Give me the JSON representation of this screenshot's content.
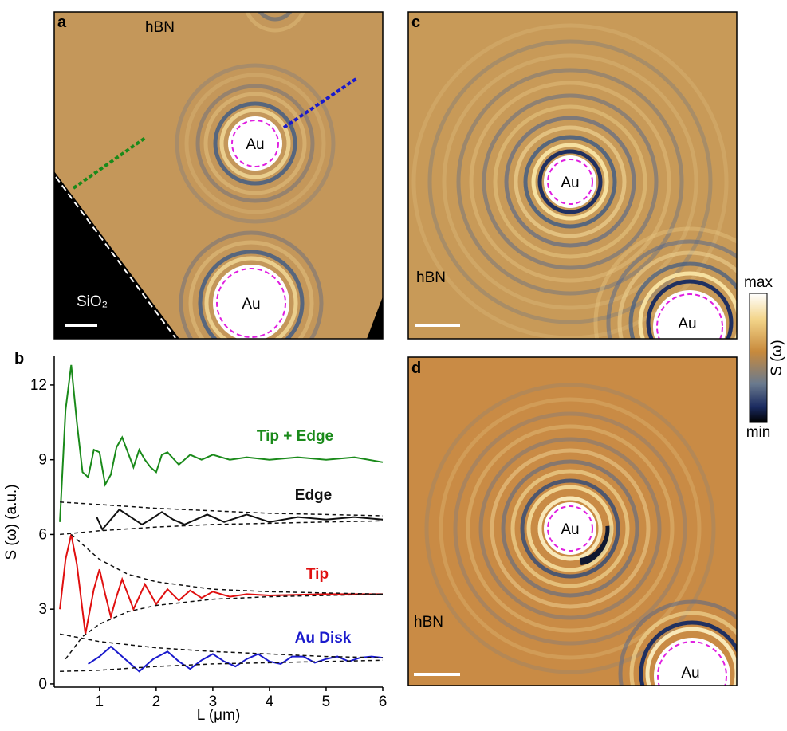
{
  "chart_data": {
    "type": "line",
    "panel_label": "b",
    "x_label": "L (μm)",
    "y_label": "S (ω) (a.u.)",
    "xlim": [
      0.2,
      6
    ],
    "ylim": [
      -0.13,
      13.15
    ],
    "xticks": [
      1,
      2,
      3,
      4,
      5,
      6
    ],
    "yticks": [
      0,
      3,
      6,
      9,
      12
    ],
    "series": [
      {
        "name": "Tip + Edge",
        "color": "#1a8a1a",
        "x": [
          0.3,
          0.4,
          0.5,
          0.6,
          0.7,
          0.8,
          0.9,
          1.0,
          1.1,
          1.2,
          1.3,
          1.4,
          1.5,
          1.6,
          1.7,
          1.8,
          1.9,
          2.0,
          2.1,
          2.2,
          2.4,
          2.6,
          2.8,
          3.0,
          3.3,
          3.6,
          4.0,
          4.5,
          5.0,
          5.5,
          6.0
        ],
        "values": [
          6.5,
          11.0,
          12.8,
          10.5,
          8.5,
          8.3,
          9.4,
          9.3,
          8.0,
          8.4,
          9.5,
          9.9,
          9.3,
          8.7,
          9.4,
          9.0,
          8.7,
          8.5,
          9.2,
          9.3,
          8.8,
          9.2,
          9.0,
          9.2,
          9.0,
          9.1,
          9.0,
          9.1,
          9.0,
          9.1,
          8.9
        ]
      },
      {
        "name": "Edge",
        "color": "#111111",
        "x": [
          0.95,
          1.05,
          1.2,
          1.35,
          1.55,
          1.75,
          1.9,
          2.1,
          2.3,
          2.5,
          2.7,
          2.9,
          3.2,
          3.6,
          4.0,
          4.5,
          5.0,
          5.5,
          6.0
        ],
        "values": [
          6.7,
          6.2,
          6.6,
          7.0,
          6.7,
          6.4,
          6.6,
          6.9,
          6.6,
          6.4,
          6.6,
          6.8,
          6.5,
          6.8,
          6.5,
          6.7,
          6.6,
          6.7,
          6.6
        ]
      },
      {
        "name": "Tip",
        "color": "#e01010",
        "x": [
          0.3,
          0.4,
          0.5,
          0.6,
          0.75,
          0.9,
          1.0,
          1.1,
          1.2,
          1.3,
          1.4,
          1.5,
          1.6,
          1.7,
          1.8,
          1.9,
          2.0,
          2.2,
          2.4,
          2.6,
          2.8,
          3.0,
          3.3,
          3.6,
          4.0,
          5.0,
          6.0
        ],
        "values": [
          3.0,
          5.0,
          6.0,
          4.8,
          2.0,
          3.8,
          4.6,
          3.6,
          2.7,
          3.5,
          4.2,
          3.6,
          3.0,
          3.5,
          4.0,
          3.6,
          3.2,
          3.8,
          3.35,
          3.75,
          3.45,
          3.7,
          3.5,
          3.6,
          3.55,
          3.6,
          3.6
        ]
      },
      {
        "name": "Au Disk",
        "color": "#1a1acc",
        "x": [
          0.8,
          1.0,
          1.2,
          1.45,
          1.7,
          1.95,
          2.2,
          2.4,
          2.6,
          2.8,
          3.0,
          3.2,
          3.4,
          3.6,
          3.8,
          4.0,
          4.2,
          4.4,
          4.6,
          4.8,
          5.0,
          5.2,
          5.4,
          5.6,
          5.8,
          6.0
        ],
        "values": [
          0.8,
          1.1,
          1.5,
          1.0,
          0.5,
          1.0,
          1.3,
          0.9,
          0.6,
          0.95,
          1.2,
          0.9,
          0.7,
          1.0,
          1.2,
          0.9,
          0.8,
          1.1,
          1.1,
          0.85,
          1.0,
          1.1,
          0.9,
          1.05,
          1.1,
          1.05
        ]
      },
      {
        "color": "#111111",
        "dashed": true,
        "x": [
          0.3,
          1,
          2,
          3,
          4,
          5,
          6
        ],
        "values": [
          7.3,
          7.2,
          7.05,
          6.95,
          6.85,
          6.8,
          6.75
        ]
      },
      {
        "color": "#111111",
        "dashed": true,
        "x": [
          0.3,
          1,
          2,
          3,
          4,
          5,
          6
        ],
        "values": [
          6.0,
          6.15,
          6.3,
          6.4,
          6.45,
          6.5,
          6.55
        ]
      },
      {
        "color": "#111111",
        "dashed": true,
        "x": [
          0.5,
          1,
          1.5,
          2,
          3,
          4,
          5,
          6
        ],
        "values": [
          6.0,
          5.0,
          4.4,
          4.1,
          3.8,
          3.7,
          3.65,
          3.6
        ]
      },
      {
        "color": "#111111",
        "dashed": true,
        "x": [
          0.4,
          0.7,
          1,
          1.5,
          2,
          3,
          4,
          5,
          6
        ],
        "values": [
          1.0,
          1.9,
          2.4,
          2.9,
          3.15,
          3.4,
          3.5,
          3.55,
          3.6
        ]
      },
      {
        "color": "#111111",
        "dashed": true,
        "x": [
          0.3,
          1,
          2,
          3,
          4,
          5,
          6
        ],
        "values": [
          2.0,
          1.7,
          1.45,
          1.3,
          1.2,
          1.1,
          1.05
        ]
      },
      {
        "color": "#111111",
        "dashed": true,
        "x": [
          0.3,
          1,
          2,
          3,
          4,
          5,
          6
        ],
        "values": [
          0.5,
          0.55,
          0.7,
          0.8,
          0.85,
          0.9,
          0.95
        ]
      }
    ]
  },
  "panel_a": {
    "label": "a",
    "material": "hBN",
    "substrate": "SiO₂",
    "disk_top": "Au",
    "disk_bottom": "Au"
  },
  "panel_c": {
    "label": "c",
    "material": "hBN",
    "disk_top": "Au",
    "disk_bottom": "Au"
  },
  "panel_d": {
    "label": "d",
    "material": "hBN",
    "disk_top": "Au",
    "disk_bottom": "Au"
  },
  "colorbar": {
    "max": "max",
    "min": "min",
    "title": "S (ω)"
  }
}
